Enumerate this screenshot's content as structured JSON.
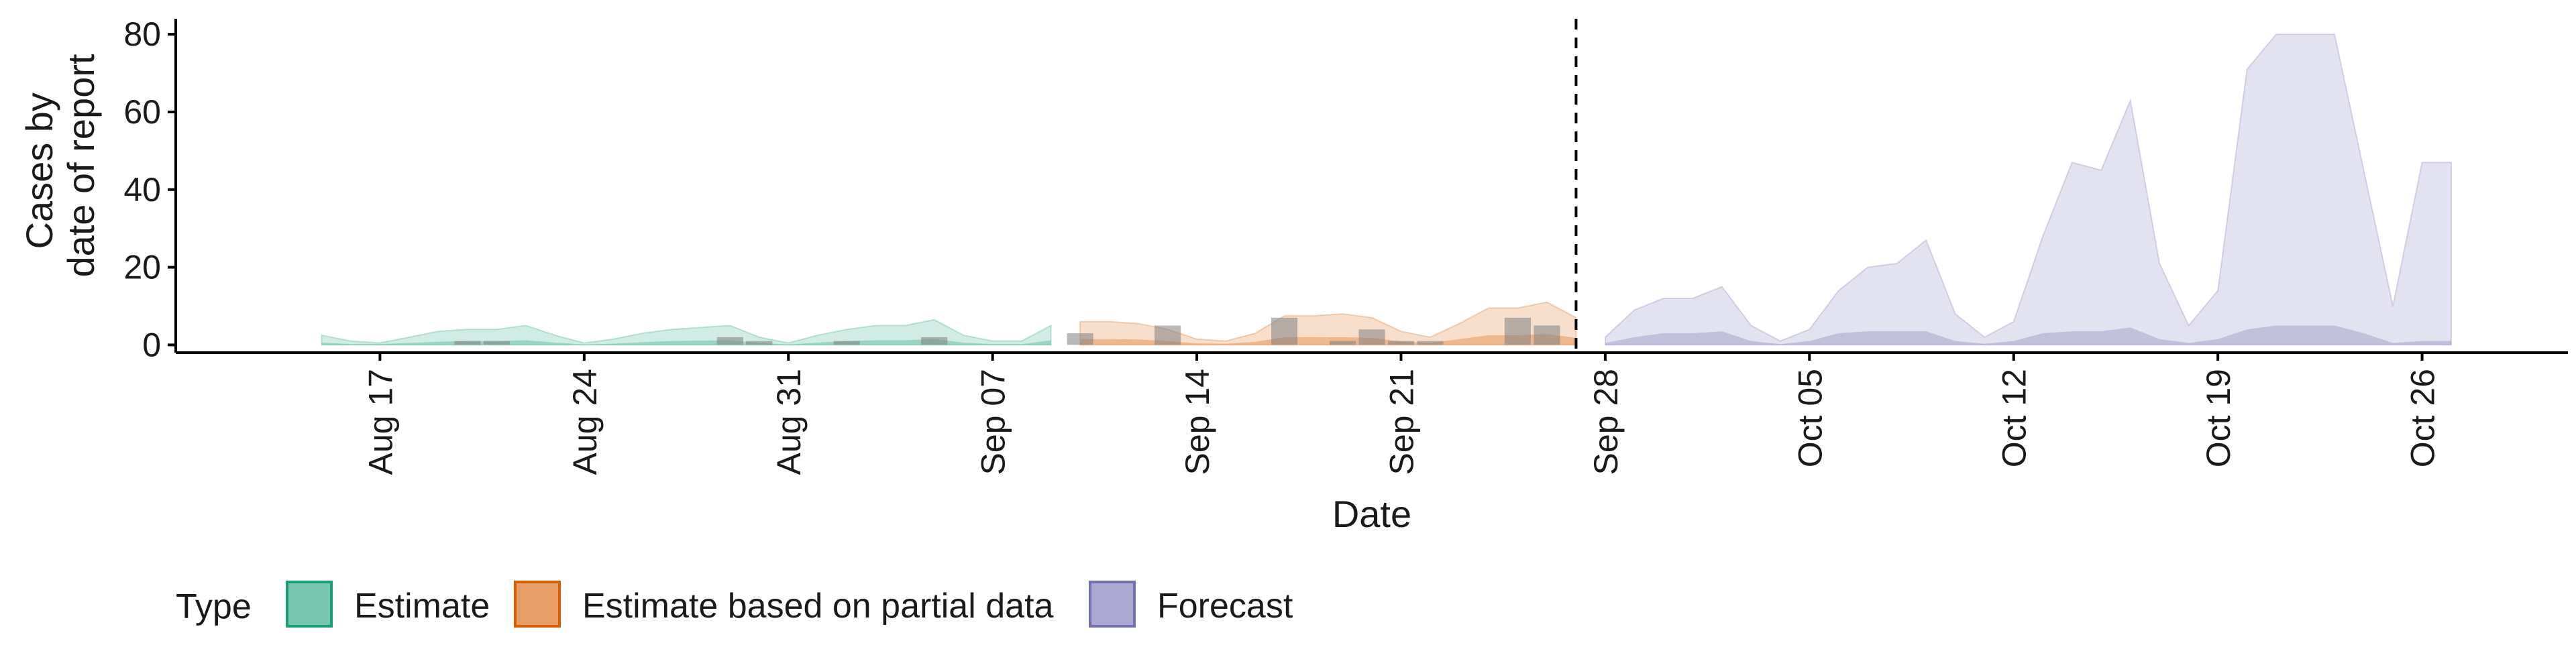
{
  "chart_data": {
    "type": "area",
    "xlabel": "Date",
    "ylabel_lines": [
      "Cases by",
      "date of report"
    ],
    "ylim": [
      -2,
      84
    ],
    "yticks": [
      0,
      20,
      40,
      60,
      80
    ],
    "xlim": [
      "2020-08-10",
      "2020-10-31"
    ],
    "xticks": [
      {
        "date": "2020-08-17",
        "label": "Aug 17"
      },
      {
        "date": "2020-08-24",
        "label": "Aug 24"
      },
      {
        "date": "2020-08-31",
        "label": "Aug 31"
      },
      {
        "date": "2020-09-07",
        "label": "Sep 07"
      },
      {
        "date": "2020-09-14",
        "label": "Sep 14"
      },
      {
        "date": "2020-09-21",
        "label": "Sep 21"
      },
      {
        "date": "2020-09-28",
        "label": "Sep 28"
      },
      {
        "date": "2020-10-05",
        "label": "Oct 05"
      },
      {
        "date": "2020-10-12",
        "label": "Oct 12"
      },
      {
        "date": "2020-10-19",
        "label": "Oct 19"
      },
      {
        "date": "2020-10-26",
        "label": "Oct 26"
      }
    ],
    "forecast_start": "2020-09-27",
    "series": [
      {
        "name": "Estimate",
        "color": "#1b9e77",
        "dates": [
          "2020-08-15",
          "2020-08-16",
          "2020-08-17",
          "2020-08-18",
          "2020-08-19",
          "2020-08-20",
          "2020-08-21",
          "2020-08-22",
          "2020-08-23",
          "2020-08-24",
          "2020-08-25",
          "2020-08-26",
          "2020-08-27",
          "2020-08-28",
          "2020-08-29",
          "2020-08-30",
          "2020-08-31",
          "2020-09-01",
          "2020-09-02",
          "2020-09-03",
          "2020-09-04",
          "2020-09-05",
          "2020-09-06",
          "2020-09-07",
          "2020-09-08",
          "2020-09-09"
        ],
        "upper90": [
          2.5,
          1.0,
          0.5,
          2.0,
          3.5,
          4.0,
          4.0,
          5.0,
          2.5,
          0.5,
          1.5,
          3.0,
          4.0,
          4.5,
          5.0,
          2.0,
          0.5,
          2.5,
          4.0,
          5.0,
          5.0,
          6.5,
          2.5,
          1.0,
          1.0,
          5.0
        ],
        "upper50": [
          0.6,
          0.2,
          0.2,
          0.5,
          0.8,
          1.0,
          1.0,
          1.2,
          0.6,
          0.1,
          0.3,
          0.7,
          1.0,
          1.1,
          1.2,
          0.5,
          0.1,
          0.6,
          1.0,
          1.2,
          1.2,
          1.5,
          0.6,
          0.2,
          0.2,
          1.2
        ]
      },
      {
        "name": "Estimate based on partial data",
        "color": "#d95f02",
        "dates": [
          "2020-09-10",
          "2020-09-11",
          "2020-09-12",
          "2020-09-13",
          "2020-09-14",
          "2020-09-15",
          "2020-09-16",
          "2020-09-17",
          "2020-09-18",
          "2020-09-19",
          "2020-09-20",
          "2020-09-21",
          "2020-09-22",
          "2020-09-23",
          "2020-09-24",
          "2020-09-25",
          "2020-09-26",
          "2020-09-27"
        ],
        "upper90": [
          6.0,
          6.0,
          5.5,
          4.0,
          1.5,
          1.0,
          3.0,
          7.5,
          7.5,
          8.0,
          7.0,
          3.5,
          2.0,
          5.5,
          9.5,
          9.5,
          11.0,
          7.0
        ],
        "upper50": [
          1.5,
          1.5,
          1.4,
          1.0,
          0.4,
          0.3,
          0.8,
          2.0,
          2.0,
          2.0,
          1.8,
          0.9,
          0.5,
          1.5,
          2.5,
          2.5,
          2.8,
          1.8
        ]
      },
      {
        "name": "Forecast",
        "color": "#7570b3",
        "dates": [
          "2020-09-28",
          "2020-09-29",
          "2020-09-30",
          "2020-10-01",
          "2020-10-02",
          "2020-10-03",
          "2020-10-04",
          "2020-10-05",
          "2020-10-06",
          "2020-10-07",
          "2020-10-08",
          "2020-10-09",
          "2020-10-10",
          "2020-10-11",
          "2020-10-12",
          "2020-10-13",
          "2020-10-14",
          "2020-10-15",
          "2020-10-16",
          "2020-10-17",
          "2020-10-18",
          "2020-10-19",
          "2020-10-20",
          "2020-10-21",
          "2020-10-22",
          "2020-10-23",
          "2020-10-24",
          "2020-10-25",
          "2020-10-26",
          "2020-10-27"
        ],
        "upper90": [
          2,
          9,
          12,
          12,
          15,
          5,
          1,
          4,
          14,
          20,
          21,
          27,
          8,
          2,
          6,
          28,
          47,
          45,
          63,
          21,
          5,
          14,
          71,
          80,
          80,
          80,
          45,
          10,
          47,
          47
        ],
        "upper50": [
          0.5,
          2,
          3,
          3,
          3.5,
          1,
          0.2,
          1,
          3,
          3.5,
          3.5,
          3.5,
          1,
          0.3,
          1,
          3,
          3.5,
          3.5,
          4.5,
          1.5,
          0.5,
          1.5,
          4,
          5,
          5,
          5,
          3,
          0.5,
          1,
          1
        ]
      }
    ],
    "reported_cases": {
      "color": "#808080",
      "dates": [
        "2020-08-20",
        "2020-08-21",
        "2020-08-29",
        "2020-08-30",
        "2020-09-02",
        "2020-09-05",
        "2020-09-10",
        "2020-09-13",
        "2020-09-17",
        "2020-09-19",
        "2020-09-20",
        "2020-09-21",
        "2020-09-22",
        "2020-09-25",
        "2020-09-26"
      ],
      "values": [
        1,
        1,
        2,
        1,
        1,
        2,
        3,
        5,
        7,
        1,
        4,
        1,
        1,
        7,
        5
      ]
    },
    "legend": {
      "title": "Type",
      "position": "bottom",
      "items": [
        {
          "label": "Estimate",
          "color": "#1b9e77"
        },
        {
          "label": "Estimate based on partial data",
          "color": "#d95f02"
        },
        {
          "label": "Forecast",
          "color": "#7570b3"
        }
      ]
    }
  }
}
